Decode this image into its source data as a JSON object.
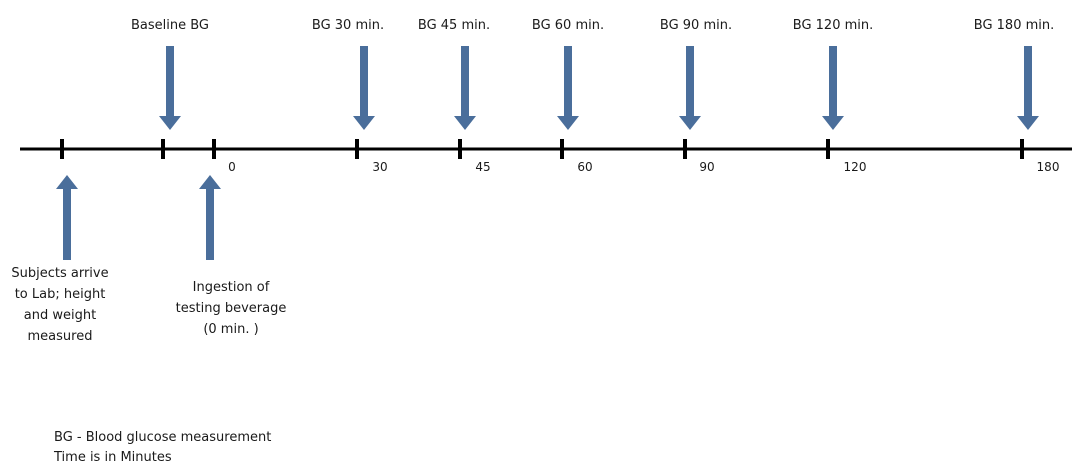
{
  "colors": {
    "arrow": "#4A6E9B",
    "line": "#000000",
    "text": "#1a1a1a"
  },
  "top_labels": [
    {
      "text": "Baseline BG"
    },
    {
      "text": "BG 30 min."
    },
    {
      "text": "BG 45 min."
    },
    {
      "text": "BG 60 min."
    },
    {
      "text": "BG 90 min."
    },
    {
      "text": "BG 120 min."
    },
    {
      "text": "BG 180 min."
    }
  ],
  "tick_labels": [
    "0",
    "30",
    "45",
    "60",
    "90",
    "120",
    "180"
  ],
  "bottom_labels": [
    {
      "lines": [
        "Subjects arrive",
        "to Lab; height",
        "and weight",
        "measured"
      ]
    },
    {
      "lines": [
        "Ingestion of",
        "testing beverage",
        "(0 min. )"
      ]
    }
  ],
  "notes": {
    "line1": "BG - Blood glucose measurement",
    "line2": "Time is in Minutes"
  }
}
